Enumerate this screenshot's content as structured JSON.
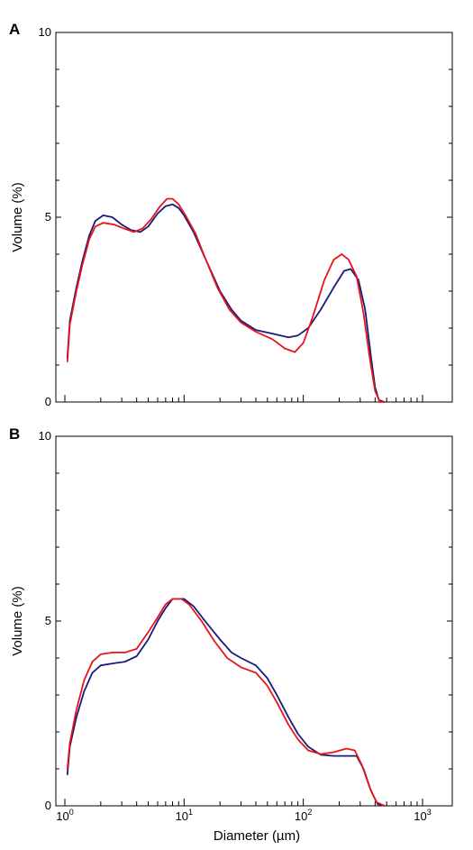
{
  "chart_data": [
    {
      "panel": "A",
      "type": "line",
      "xlabel": "",
      "ylabel": "Volume (%)",
      "xscale": "log",
      "xlim": [
        1.0,
        2000
      ],
      "ylim": [
        0,
        10
      ],
      "yticks": [
        0,
        5,
        10
      ],
      "ytick_labels": [
        "0",
        "5",
        "10"
      ],
      "grid": false,
      "series": [
        {
          "color": "#1a1a7a",
          "points": [
            [
              1.05,
              1.2
            ],
            [
              1.1,
              2.2
            ],
            [
              1.25,
              3.1
            ],
            [
              1.4,
              3.8
            ],
            [
              1.6,
              4.5
            ],
            [
              1.8,
              4.9
            ],
            [
              2.1,
              5.05
            ],
            [
              2.5,
              5.0
            ],
            [
              3.0,
              4.8
            ],
            [
              3.6,
              4.65
            ],
            [
              4.3,
              4.6
            ],
            [
              5.0,
              4.75
            ],
            [
              6.0,
              5.1
            ],
            [
              7.0,
              5.3
            ],
            [
              8.0,
              5.35
            ],
            [
              9.0,
              5.25
            ],
            [
              10.0,
              5.05
            ],
            [
              12.0,
              4.6
            ],
            [
              15.0,
              3.9
            ],
            [
              20.0,
              3.0
            ],
            [
              25.0,
              2.5
            ],
            [
              30.0,
              2.2
            ],
            [
              40.0,
              1.95
            ],
            [
              55.0,
              1.85
            ],
            [
              75.0,
              1.75
            ],
            [
              90.0,
              1.8
            ],
            [
              110.0,
              2.0
            ],
            [
              140.0,
              2.5
            ],
            [
              180.0,
              3.1
            ],
            [
              220.0,
              3.55
            ],
            [
              250.0,
              3.6
            ],
            [
              290.0,
              3.3
            ],
            [
              330.0,
              2.5
            ],
            [
              370.0,
              1.2
            ],
            [
              400.0,
              0.4
            ],
            [
              430.0,
              0.05
            ],
            [
              480.0,
              0.0
            ]
          ]
        },
        {
          "color": "#e8141a",
          "points": [
            [
              1.05,
              1.1
            ],
            [
              1.1,
              2.1
            ],
            [
              1.25,
              3.0
            ],
            [
              1.4,
              3.7
            ],
            [
              1.6,
              4.4
            ],
            [
              1.8,
              4.75
            ],
            [
              2.1,
              4.85
            ],
            [
              2.6,
              4.8
            ],
            [
              3.1,
              4.7
            ],
            [
              3.8,
              4.6
            ],
            [
              4.5,
              4.7
            ],
            [
              5.3,
              4.95
            ],
            [
              6.3,
              5.3
            ],
            [
              7.2,
              5.5
            ],
            [
              8.0,
              5.5
            ],
            [
              9.0,
              5.35
            ],
            [
              10.5,
              5.0
            ],
            [
              12.5,
              4.55
            ],
            [
              15.0,
              3.9
            ],
            [
              19.0,
              3.1
            ],
            [
              24.0,
              2.5
            ],
            [
              30.0,
              2.15
            ],
            [
              40.0,
              1.9
            ],
            [
              55.0,
              1.7
            ],
            [
              70.0,
              1.45
            ],
            [
              85.0,
              1.35
            ],
            [
              100.0,
              1.6
            ],
            [
              120.0,
              2.3
            ],
            [
              150.0,
              3.3
            ],
            [
              180.0,
              3.85
            ],
            [
              210.0,
              4.0
            ],
            [
              240.0,
              3.85
            ],
            [
              280.0,
              3.4
            ],
            [
              320.0,
              2.4
            ],
            [
              360.0,
              1.2
            ],
            [
              400.0,
              0.3
            ],
            [
              440.0,
              0.0
            ],
            [
              480.0,
              0.0
            ]
          ]
        }
      ]
    },
    {
      "panel": "B",
      "type": "line",
      "xlabel": "Diameter (µm)",
      "ylabel": "Volume (%)",
      "xscale": "log",
      "xlim": [
        1.0,
        2000
      ],
      "ylim": [
        0,
        10
      ],
      "yticks": [
        0,
        5,
        10
      ],
      "ytick_labels": [
        "0",
        "5",
        "10"
      ],
      "xticks": [
        1,
        10,
        100,
        1000
      ],
      "xtick_labels": [
        {
          "base": "10",
          "exp": "0"
        },
        {
          "base": "10",
          "exp": "1"
        },
        {
          "base": "10",
          "exp": "2"
        },
        {
          "base": "10",
          "exp": "3"
        }
      ],
      "grid": false,
      "series": [
        {
          "color": "#1a1a7a",
          "points": [
            [
              1.05,
              0.85
            ],
            [
              1.1,
              1.6
            ],
            [
              1.25,
              2.4
            ],
            [
              1.45,
              3.1
            ],
            [
              1.7,
              3.6
            ],
            [
              2.0,
              3.8
            ],
            [
              2.5,
              3.85
            ],
            [
              3.2,
              3.9
            ],
            [
              4.0,
              4.05
            ],
            [
              5.0,
              4.5
            ],
            [
              6.0,
              5.0
            ],
            [
              7.0,
              5.35
            ],
            [
              8.0,
              5.6
            ],
            [
              10.0,
              5.6
            ],
            [
              12.0,
              5.4
            ],
            [
              15.0,
              5.0
            ],
            [
              20.0,
              4.5
            ],
            [
              25.0,
              4.15
            ],
            [
              30.0,
              4.0
            ],
            [
              40.0,
              3.8
            ],
            [
              50.0,
              3.45
            ],
            [
              60.0,
              3.0
            ],
            [
              75.0,
              2.4
            ],
            [
              90.0,
              1.95
            ],
            [
              110.0,
              1.6
            ],
            [
              140.0,
              1.38
            ],
            [
              180.0,
              1.35
            ],
            [
              230.0,
              1.35
            ],
            [
              280.0,
              1.35
            ],
            [
              320.0,
              1.0
            ],
            [
              370.0,
              0.4
            ],
            [
              420.0,
              0.05
            ],
            [
              480.0,
              0.0
            ]
          ]
        },
        {
          "color": "#e8141a",
          "points": [
            [
              1.05,
              1.0
            ],
            [
              1.1,
              1.7
            ],
            [
              1.25,
              2.6
            ],
            [
              1.45,
              3.4
            ],
            [
              1.7,
              3.9
            ],
            [
              2.0,
              4.1
            ],
            [
              2.5,
              4.15
            ],
            [
              3.2,
              4.15
            ],
            [
              4.0,
              4.25
            ],
            [
              5.0,
              4.7
            ],
            [
              6.0,
              5.1
            ],
            [
              7.0,
              5.45
            ],
            [
              8.0,
              5.6
            ],
            [
              9.5,
              5.6
            ],
            [
              11.0,
              5.45
            ],
            [
              14.0,
              5.0
            ],
            [
              18.0,
              4.45
            ],
            [
              23.0,
              4.0
            ],
            [
              30.0,
              3.75
            ],
            [
              40.0,
              3.6
            ],
            [
              50.0,
              3.25
            ],
            [
              60.0,
              2.8
            ],
            [
              75.0,
              2.2
            ],
            [
              90.0,
              1.8
            ],
            [
              110.0,
              1.5
            ],
            [
              140.0,
              1.4
            ],
            [
              180.0,
              1.45
            ],
            [
              230.0,
              1.55
            ],
            [
              270.0,
              1.5
            ],
            [
              310.0,
              1.1
            ],
            [
              360.0,
              0.5
            ],
            [
              410.0,
              0.1
            ],
            [
              480.0,
              0.0
            ]
          ]
        }
      ]
    }
  ]
}
